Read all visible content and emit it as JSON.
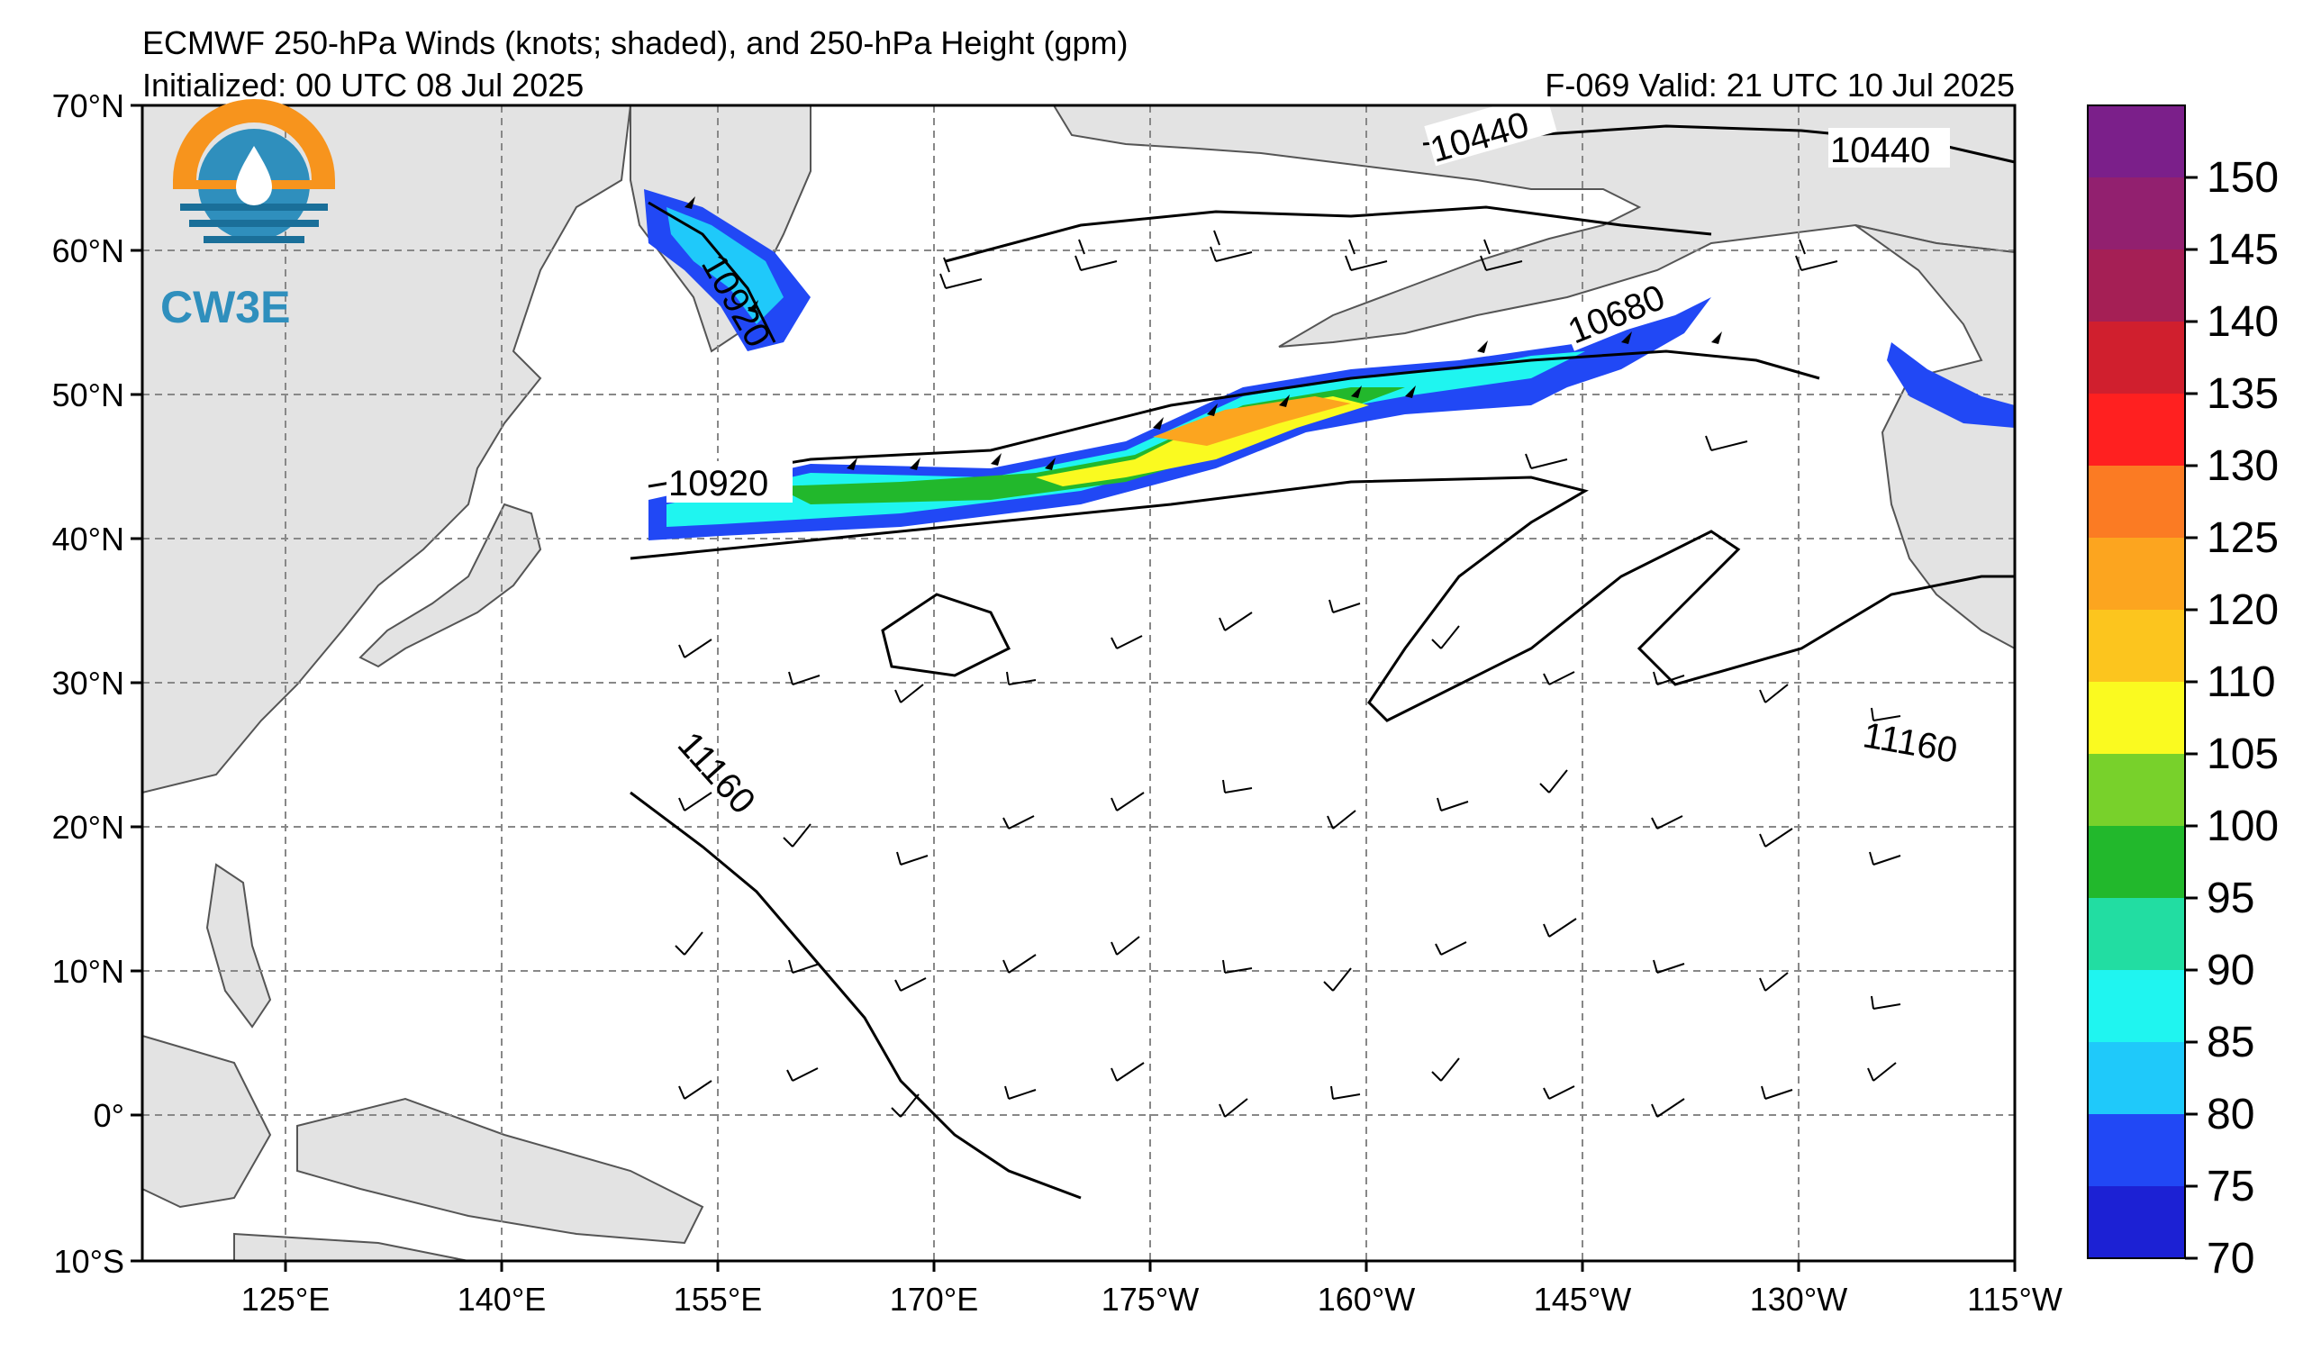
{
  "header": {
    "title": "ECMWF 250-hPa Winds (knots; shaded), and 250-hPa Height (gpm)",
    "initialized": "Initialized: 00 UTC 08 Jul 2025",
    "valid": "F-069  Valid: 21 UTC 10 Jul 2025"
  },
  "logo": {
    "text": "CW3E"
  },
  "map": {
    "lat_labels": [
      "70°N",
      "60°N",
      "50°N",
      "40°N",
      "30°N",
      "20°N",
      "10°N",
      "0°",
      "10°S"
    ],
    "lon_labels": [
      "125°E",
      "140°E",
      "155°E",
      "170°E",
      "175°W",
      "160°W",
      "145°W",
      "130°W",
      "115°W"
    ],
    "contour_labels": [
      "10440",
      "10440",
      "10920",
      "10920",
      "10680",
      "11160",
      "11160"
    ]
  },
  "colorbar": {
    "ticks": [
      "150",
      "145",
      "140",
      "135",
      "130",
      "125",
      "120",
      "110",
      "105",
      "100",
      "95",
      "90",
      "85",
      "80",
      "75",
      "70"
    ],
    "colors": [
      "#7b1f8a",
      "#92206f",
      "#a51f55",
      "#d01f2e",
      "#ff2020",
      "#fb7b23",
      "#fca51f",
      "#fcc51e",
      "#fafa20",
      "#78d12b",
      "#22b82c",
      "#22dda2",
      "#1ff5f0",
      "#1fc9fa",
      "#2148f5",
      "#1c21d4"
    ]
  }
}
